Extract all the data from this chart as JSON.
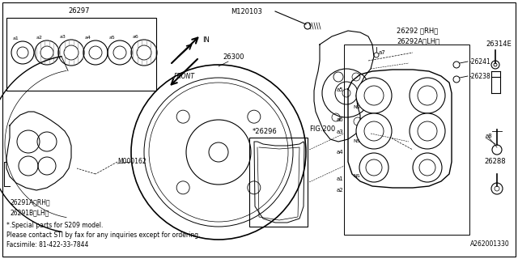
{
  "bg_color": "#ffffff",
  "line_color": "#000000",
  "fig_width": 6.4,
  "fig_height": 3.2,
  "dpi": 100,
  "footnote_lines": [
    "*.Special parts for S209 model.",
    "Please contact STI by fax for any inquiries except for ordering.",
    "Facsimile: 81-422-33-7844"
  ],
  "ref_number": "A262001330"
}
